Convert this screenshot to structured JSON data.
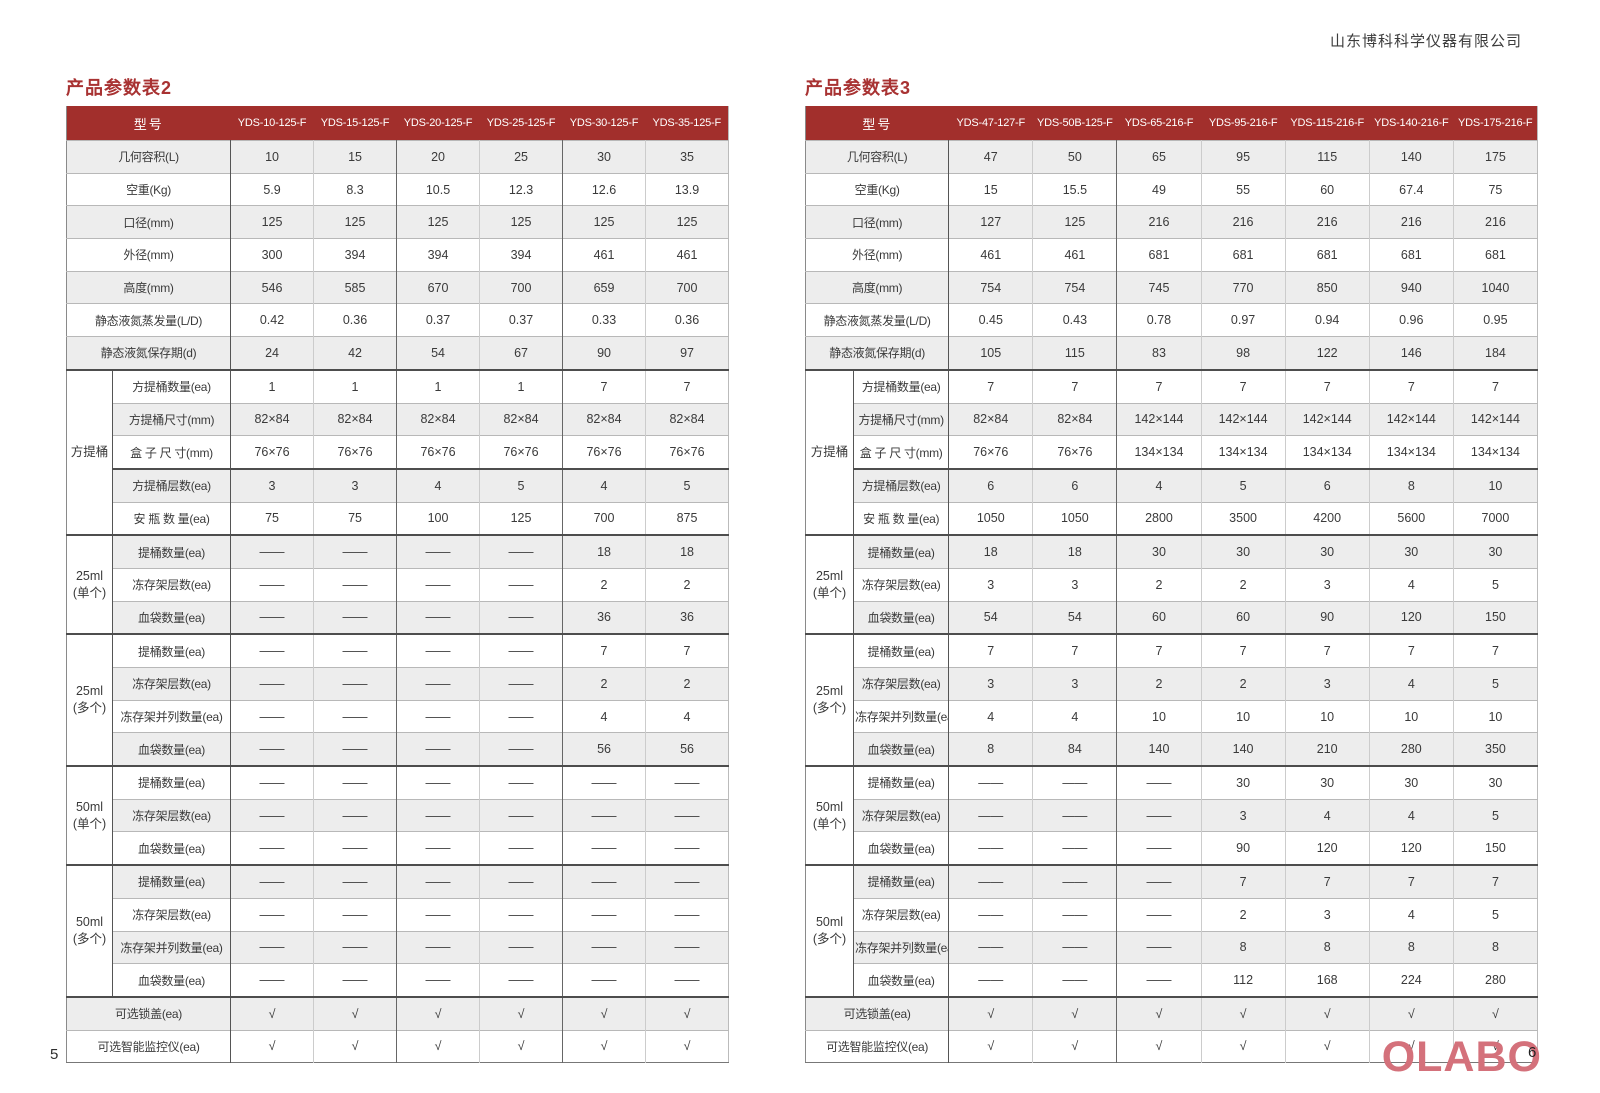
{
  "company": "山东博科科学仪器有限公司",
  "footer": {
    "page_left": "5",
    "page_right": "6",
    "logo": "OLABO"
  },
  "colors": {
    "table_header_red": "#a22f2c",
    "title_red": "#a83232",
    "row_shade_gray": "#ededed",
    "logo_pink": "#d4717b"
  },
  "tables": [
    {
      "title": "产品参数表2",
      "model_header": "型号",
      "models": [
        "YDS-10-125-F",
        "YDS-15-125-F",
        "YDS-20-125-F",
        "YDS-25-125-F",
        "YDS-30-125-F",
        "YDS-35-125-F"
      ],
      "rows": [
        {
          "label": "几何容积(L)",
          "values": [
            "10",
            "15",
            "20",
            "25",
            "30",
            "35"
          ]
        },
        {
          "label": "空重(Kg)",
          "values": [
            "5.9",
            "8.3",
            "10.5",
            "12.3",
            "12.6",
            "13.9"
          ]
        },
        {
          "label": "口径(mm)",
          "values": [
            "125",
            "125",
            "125",
            "125",
            "125",
            "125"
          ]
        },
        {
          "label": "外径(mm)",
          "values": [
            "300",
            "394",
            "394",
            "394",
            "461",
            "461"
          ]
        },
        {
          "label": "高度(mm)",
          "values": [
            "546",
            "585",
            "670",
            "700",
            "659",
            "700"
          ]
        },
        {
          "label": "静态液氮蒸发量(L/D)",
          "values": [
            "0.42",
            "0.36",
            "0.37",
            "0.37",
            "0.33",
            "0.36"
          ]
        },
        {
          "label": "静态液氮保存期(d)",
          "values": [
            "24",
            "42",
            "54",
            "67",
            "90",
            "97"
          ]
        },
        {
          "g": "start",
          "group": "方提桶",
          "span": 5,
          "sep": true,
          "label": "方提桶数量(ea)",
          "values": [
            "1",
            "1",
            "1",
            "1",
            "7",
            "7"
          ]
        },
        {
          "g": "mid",
          "label": "方提桶尺寸(mm)",
          "values": [
            "82×84",
            "82×84",
            "82×84",
            "82×84",
            "82×84",
            "82×84"
          ]
        },
        {
          "g": "mid",
          "label": "盒 子 尺 寸(mm)",
          "values": [
            "76×76",
            "76×76",
            "76×76",
            "76×76",
            "76×76",
            "76×76"
          ]
        },
        {
          "g": "mid",
          "sep": true,
          "label": "方提桶层数(ea)",
          "values": [
            "3",
            "3",
            "4",
            "5",
            "4",
            "5"
          ]
        },
        {
          "g": "mid",
          "label": "安 瓶 数 量(ea)",
          "values": [
            "75",
            "75",
            "100",
            "125",
            "700",
            "875"
          ]
        },
        {
          "g": "start",
          "group": "25ml\n(单个)",
          "span": 3,
          "sep": true,
          "label": "提桶数量(ea)",
          "values": [
            "——",
            "——",
            "——",
            "——",
            "18",
            "18"
          ]
        },
        {
          "g": "mid",
          "label": "冻存架层数(ea)",
          "values": [
            "——",
            "——",
            "——",
            "——",
            "2",
            "2"
          ]
        },
        {
          "g": "mid",
          "label": "血袋数量(ea)",
          "values": [
            "——",
            "——",
            "——",
            "——",
            "36",
            "36"
          ]
        },
        {
          "g": "start",
          "group": "25ml\n(多个)",
          "span": 4,
          "sep": true,
          "label": "提桶数量(ea)",
          "values": [
            "——",
            "——",
            "——",
            "——",
            "7",
            "7"
          ]
        },
        {
          "g": "mid",
          "label": "冻存架层数(ea)",
          "values": [
            "——",
            "——",
            "——",
            "——",
            "2",
            "2"
          ]
        },
        {
          "g": "mid",
          "label": "冻存架并列数量(ea)",
          "values": [
            "——",
            "——",
            "——",
            "——",
            "4",
            "4"
          ]
        },
        {
          "g": "mid",
          "label": "血袋数量(ea)",
          "values": [
            "——",
            "——",
            "——",
            "——",
            "56",
            "56"
          ]
        },
        {
          "g": "start",
          "group": "50ml\n(单个)",
          "span": 3,
          "sep": true,
          "label": "提桶数量(ea)",
          "values": [
            "——",
            "——",
            "——",
            "——",
            "——",
            "——"
          ]
        },
        {
          "g": "mid",
          "label": "冻存架层数(ea)",
          "values": [
            "——",
            "——",
            "——",
            "——",
            "——",
            "——"
          ]
        },
        {
          "g": "mid",
          "label": "血袋数量(ea)",
          "values": [
            "——",
            "——",
            "——",
            "——",
            "——",
            "——"
          ]
        },
        {
          "g": "start",
          "group": "50ml\n(多个)",
          "span": 4,
          "sep": true,
          "label": "提桶数量(ea)",
          "values": [
            "——",
            "——",
            "——",
            "——",
            "——",
            "——"
          ]
        },
        {
          "g": "mid",
          "label": "冻存架层数(ea)",
          "values": [
            "——",
            "——",
            "——",
            "——",
            "——",
            "——"
          ]
        },
        {
          "g": "mid",
          "label": "冻存架并列数量(ea)",
          "values": [
            "——",
            "——",
            "——",
            "——",
            "——",
            "——"
          ]
        },
        {
          "g": "mid",
          "label": "血袋数量(ea)",
          "values": [
            "——",
            "——",
            "——",
            "——",
            "——",
            "——"
          ]
        },
        {
          "sep": true,
          "label": "可选锁盖(ea)",
          "values": [
            "√",
            "√",
            "√",
            "√",
            "√",
            "√"
          ]
        },
        {
          "label": "可选智能监控仪(ea)",
          "values": [
            "√",
            "√",
            "√",
            "√",
            "√",
            "√"
          ]
        }
      ]
    },
    {
      "title": "产品参数表3",
      "model_header": "型号",
      "models": [
        "YDS-47-127-F",
        "YDS-50B-125-F",
        "YDS-65-216-F",
        "YDS-95-216-F",
        "YDS-115-216-F",
        "YDS-140-216-F",
        "YDS-175-216-F"
      ],
      "rows": [
        {
          "label": "几何容积(L)",
          "values": [
            "47",
            "50",
            "65",
            "95",
            "115",
            "140",
            "175"
          ]
        },
        {
          "label": "空重(Kg)",
          "values": [
            "15",
            "15.5",
            "49",
            "55",
            "60",
            "67.4",
            "75"
          ]
        },
        {
          "label": "口径(mm)",
          "values": [
            "127",
            "125",
            "216",
            "216",
            "216",
            "216",
            "216"
          ]
        },
        {
          "label": "外径(mm)",
          "values": [
            "461",
            "461",
            "681",
            "681",
            "681",
            "681",
            "681"
          ]
        },
        {
          "label": "高度(mm)",
          "values": [
            "754",
            "754",
            "745",
            "770",
            "850",
            "940",
            "1040"
          ]
        },
        {
          "label": "静态液氮蒸发量(L/D)",
          "values": [
            "0.45",
            "0.43",
            "0.78",
            "0.97",
            "0.94",
            "0.96",
            "0.95"
          ]
        },
        {
          "label": "静态液氮保存期(d)",
          "values": [
            "105",
            "115",
            "83",
            "98",
            "122",
            "146",
            "184"
          ]
        },
        {
          "g": "start",
          "group": "方提桶",
          "span": 5,
          "sep": true,
          "label": "方提桶数量(ea)",
          "values": [
            "7",
            "7",
            "7",
            "7",
            "7",
            "7",
            "7"
          ]
        },
        {
          "g": "mid",
          "label": "方提桶尺寸(mm)",
          "values": [
            "82×84",
            "82×84",
            "142×144",
            "142×144",
            "142×144",
            "142×144",
            "142×144"
          ]
        },
        {
          "g": "mid",
          "label": "盒 子 尺 寸(mm)",
          "values": [
            "76×76",
            "76×76",
            "134×134",
            "134×134",
            "134×134",
            "134×134",
            "134×134"
          ]
        },
        {
          "g": "mid",
          "sep": true,
          "label": "方提桶层数(ea)",
          "values": [
            "6",
            "6",
            "4",
            "5",
            "6",
            "8",
            "10"
          ]
        },
        {
          "g": "mid",
          "label": "安 瓶 数 量(ea)",
          "values": [
            "1050",
            "1050",
            "2800",
            "3500",
            "4200",
            "5600",
            "7000"
          ]
        },
        {
          "g": "start",
          "group": "25ml\n(单个)",
          "span": 3,
          "sep": true,
          "label": "提桶数量(ea)",
          "values": [
            "18",
            "18",
            "30",
            "30",
            "30",
            "30",
            "30"
          ]
        },
        {
          "g": "mid",
          "label": "冻存架层数(ea)",
          "values": [
            "3",
            "3",
            "2",
            "2",
            "3",
            "4",
            "5"
          ]
        },
        {
          "g": "mid",
          "label": "血袋数量(ea)",
          "values": [
            "54",
            "54",
            "60",
            "60",
            "90",
            "120",
            "150"
          ]
        },
        {
          "g": "start",
          "group": "25ml\n(多个)",
          "span": 4,
          "sep": true,
          "label": "提桶数量(ea)",
          "values": [
            "7",
            "7",
            "7",
            "7",
            "7",
            "7",
            "7"
          ]
        },
        {
          "g": "mid",
          "label": "冻存架层数(ea)",
          "values": [
            "3",
            "3",
            "2",
            "2",
            "3",
            "4",
            "5"
          ]
        },
        {
          "g": "mid",
          "label": "冻存架并列数量(ea)",
          "values": [
            "4",
            "4",
            "10",
            "10",
            "10",
            "10",
            "10"
          ]
        },
        {
          "g": "mid",
          "label": "血袋数量(ea)",
          "values": [
            "8",
            "84",
            "140",
            "140",
            "210",
            "280",
            "350"
          ]
        },
        {
          "g": "start",
          "group": "50ml\n(单个)",
          "span": 3,
          "sep": true,
          "label": "提桶数量(ea)",
          "values": [
            "——",
            "——",
            "——",
            "30",
            "30",
            "30",
            "30"
          ]
        },
        {
          "g": "mid",
          "label": "冻存架层数(ea)",
          "values": [
            "——",
            "——",
            "——",
            "3",
            "4",
            "4",
            "5"
          ]
        },
        {
          "g": "mid",
          "label": "血袋数量(ea)",
          "values": [
            "——",
            "——",
            "——",
            "90",
            "120",
            "120",
            "150"
          ]
        },
        {
          "g": "start",
          "group": "50ml\n(多个)",
          "span": 4,
          "sep": true,
          "label": "提桶数量(ea)",
          "values": [
            "——",
            "——",
            "——",
            "7",
            "7",
            "7",
            "7"
          ]
        },
        {
          "g": "mid",
          "label": "冻存架层数(ea)",
          "values": [
            "——",
            "——",
            "——",
            "2",
            "3",
            "4",
            "5"
          ]
        },
        {
          "g": "mid",
          "label": "冻存架并列数量(ea)",
          "values": [
            "——",
            "——",
            "——",
            "8",
            "8",
            "8",
            "8"
          ]
        },
        {
          "g": "mid",
          "label": "血袋数量(ea)",
          "values": [
            "——",
            "——",
            "——",
            "112",
            "168",
            "224",
            "280"
          ]
        },
        {
          "sep": true,
          "label": "可选锁盖(ea)",
          "values": [
            "√",
            "√",
            "√",
            "√",
            "√",
            "√",
            "√"
          ]
        },
        {
          "label": "可选智能监控仪(ea)",
          "values": [
            "√",
            "√",
            "√",
            "√",
            "√",
            "√",
            "√"
          ]
        }
      ]
    }
  ]
}
